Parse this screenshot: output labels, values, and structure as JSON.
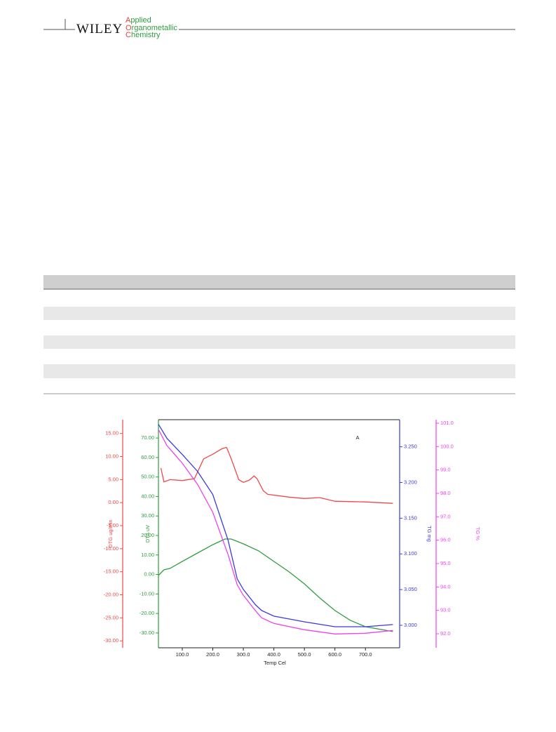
{
  "header": {
    "publisher": "WILEY",
    "journal": [
      "Applied",
      "Organometallic",
      "Chemistry"
    ]
  },
  "figure": {
    "type": "line",
    "panel_label": "A",
    "x_label": "Temp Cel",
    "xlim": [
      22,
      812
    ],
    "xticks": [
      {
        "value": 100,
        "label": "100.0"
      },
      {
        "value": 200,
        "label": "200.0"
      },
      {
        "value": 300,
        "label": "300.0"
      },
      {
        "value": 400,
        "label": "400.0"
      },
      {
        "value": 500,
        "label": "500.0"
      },
      {
        "value": 600,
        "label": "600.0"
      },
      {
        "value": 700,
        "label": "700.0"
      }
    ],
    "axes": [
      {
        "label": "DTG ug/min",
        "color": "#f04848",
        "ylim": [
          -31.5,
          18
        ],
        "yticks": [
          {
            "value": 15,
            "label": "15.00"
          },
          {
            "value": 10,
            "label": "10.00"
          },
          {
            "value": 5,
            "label": "5.00"
          },
          {
            "value": 0,
            "label": "0.00"
          },
          {
            "value": -5,
            "label": "-5.00"
          },
          {
            "value": -10,
            "label": "-10.00"
          },
          {
            "value": -15,
            "label": "-15.00"
          },
          {
            "value": -20,
            "label": "-20.00"
          },
          {
            "value": -25,
            "label": "-25.00"
          },
          {
            "value": -30,
            "label": "-30.00"
          }
        ]
      },
      {
        "label": "DTA uV",
        "color": "#2e9e3e",
        "ylim": [
          -37.6,
          79.4
        ],
        "yticks": [
          {
            "value": 70,
            "label": "70.00"
          },
          {
            "value": 60,
            "label": "60.00"
          },
          {
            "value": 50,
            "label": "50.00"
          },
          {
            "value": 40,
            "label": "40.00"
          },
          {
            "value": 30,
            "label": "30.00"
          },
          {
            "value": 20,
            "label": "20.00"
          },
          {
            "value": 10,
            "label": "10.00"
          },
          {
            "value": 0,
            "label": "0.00"
          },
          {
            "value": -10,
            "label": "-10.00"
          },
          {
            "value": -20,
            "label": "-20.00"
          },
          {
            "value": -30,
            "label": "-30.00"
          }
        ]
      },
      {
        "label": "TG mg",
        "color": "#3a3ae0",
        "ylim": [
          2.9685,
          3.288
        ],
        "yticks": [
          {
            "value": 3.0,
            "label": "3.000"
          },
          {
            "value": 3.05,
            "label": "3.050"
          },
          {
            "value": 3.1,
            "label": "3.100"
          },
          {
            "value": 3.15,
            "label": "3.150"
          },
          {
            "value": 3.2,
            "label": "3.200"
          },
          {
            "value": 3.25,
            "label": "3.250"
          }
        ]
      },
      {
        "label": "TG %",
        "color": "#f040f0",
        "ylim": [
          91.4,
          101.15
        ],
        "yticks": [
          {
            "value": 92,
            "label": "92.0"
          },
          {
            "value": 93,
            "label": "93.0"
          },
          {
            "value": 94,
            "label": "94.0"
          },
          {
            "value": 95,
            "label": "95.0"
          },
          {
            "value": 96,
            "label": "96.0"
          },
          {
            "value": 97,
            "label": "97.0"
          },
          {
            "value": 98,
            "label": "98.0"
          },
          {
            "value": 99,
            "label": "99.0"
          },
          {
            "value": 100,
            "label": "100.0"
          },
          {
            "value": 101,
            "label": "101.0"
          }
        ]
      }
    ],
    "series": [
      {
        "axis": 0,
        "color": "#f04848",
        "x": [
          30,
          40,
          60,
          100,
          140,
          170,
          200,
          230,
          245,
          260,
          285,
          300,
          320,
          335,
          345,
          365,
          380,
          450,
          500,
          550,
          600,
          700,
          790
        ],
        "values": [
          7.5,
          4.5,
          5.0,
          4.8,
          5.2,
          9.5,
          10.5,
          11.7,
          12.0,
          9.6,
          5.0,
          4.4,
          4.9,
          5.8,
          5.2,
          2.6,
          1.8,
          1.2,
          0.9,
          1.1,
          0.3,
          0.15,
          -0.15
        ]
      },
      {
        "axis": 1,
        "color": "#2e9e3e",
        "x": [
          22,
          40,
          60,
          100,
          150,
          200,
          240,
          260,
          300,
          350,
          400,
          450,
          500,
          550,
          600,
          650,
          700,
          790
        ],
        "values": [
          -0.5,
          2.4,
          3.1,
          6.7,
          11.0,
          15.3,
          18.2,
          18.2,
          15.7,
          12.1,
          6.7,
          1.3,
          -4.8,
          -12.0,
          -18.5,
          -23.5,
          -26.8,
          -29.3
        ]
      },
      {
        "axis": 2,
        "color": "#3a3ae0",
        "x": [
          22,
          50,
          100,
          150,
          200,
          250,
          280,
          300,
          340,
          360,
          400,
          500,
          600,
          700,
          790
        ],
        "values": [
          3.2815,
          3.2618,
          3.2392,
          3.2156,
          3.1831,
          3.1191,
          3.065,
          3.0502,
          3.0286,
          3.0207,
          3.0128,
          3.0049,
          2.998,
          2.998,
          3.001
        ]
      },
      {
        "axis": 3,
        "color": "#f040f0",
        "x": [
          22,
          50,
          100,
          150,
          200,
          250,
          280,
          300,
          340,
          360,
          400,
          500,
          600,
          700,
          790
        ],
        "values": [
          100.73,
          100.04,
          99.29,
          98.39,
          97.19,
          95.38,
          94.09,
          93.64,
          92.98,
          92.68,
          92.44,
          92.17,
          91.99,
          92.02,
          92.14
        ]
      }
    ]
  }
}
